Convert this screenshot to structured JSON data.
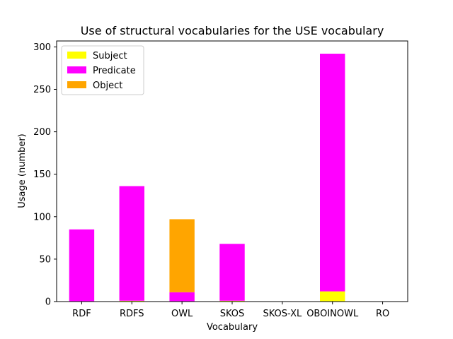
{
  "chart_data": {
    "type": "bar",
    "stacked": true,
    "title": "Use of structural vocabularies for the USE vocabulary",
    "xlabel": "Vocabulary",
    "ylabel": "Usage (number)",
    "categories": [
      "RDF",
      "RDFS",
      "OWL",
      "SKOS",
      "SKOS-XL",
      "OBOINOWL",
      "RO"
    ],
    "series": [
      {
        "name": "Subject",
        "color": "#ffff00",
        "values": [
          0,
          1,
          0,
          1,
          0,
          12,
          0
        ]
      },
      {
        "name": "Predicate",
        "color": "#ff00ff",
        "values": [
          85,
          135,
          11,
          67,
          0,
          280,
          0
        ]
      },
      {
        "name": "Object",
        "color": "#ffa500",
        "values": [
          0,
          0,
          86,
          0,
          0,
          0,
          0
        ]
      }
    ],
    "ylim": [
      0,
      307
    ],
    "yticks": [
      0,
      50,
      100,
      150,
      200,
      250,
      300
    ],
    "grid": false,
    "legend": "top-left"
  }
}
